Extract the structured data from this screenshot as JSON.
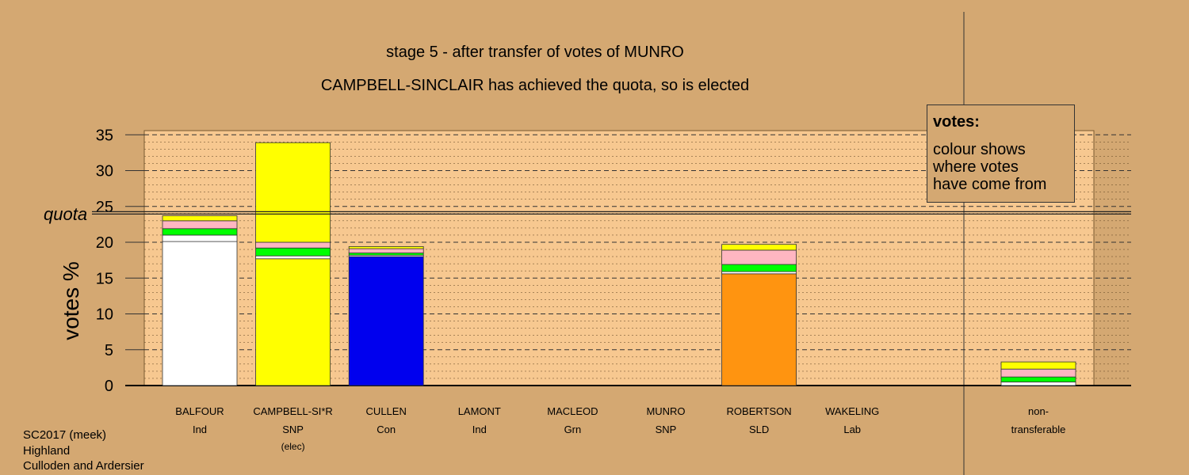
{
  "title": {
    "line1": "stage 5 - after transfer of votes of MUNRO",
    "line2": "CAMPBELL-SINCLAIR has achieved the quota, so is elected"
  },
  "legend": {
    "title": "votes:",
    "lines": [
      "colour shows",
      "where votes",
      "have come from"
    ]
  },
  "footer": {
    "lines": [
      "SC2017 (meek)",
      "Highland",
      "Culloden and Ardersier"
    ]
  },
  "colors": {
    "Ind": "#ffffff",
    "SNP": "#ffff00",
    "Con": "#0000ee",
    "SLD": "#ff9410",
    "Grn": "#00ff00",
    "Lab": "#ffb6c1",
    "background": "#d4a872",
    "plot_area": "#f7c890"
  },
  "chart_data": {
    "type": "bar",
    "stacked": true,
    "ylabel": "votes %",
    "ylim": [
      0,
      35
    ],
    "yticks": [
      0,
      5,
      10,
      15,
      20,
      25,
      30,
      35
    ],
    "grid": true,
    "quota": {
      "label": "quota",
      "value": 24.1
    },
    "legend_position": "top-right",
    "candidates": [
      {
        "name": "BALFOUR",
        "party": "Ind",
        "note": "",
        "segments": [
          {
            "from": "Ind",
            "value": 20.1
          },
          {
            "from": "Ind",
            "value": 0.9
          },
          {
            "from": "Grn",
            "value": 0.9
          },
          {
            "from": "Lab",
            "value": 1.1
          },
          {
            "from": "SNP",
            "value": 0.7
          }
        ]
      },
      {
        "name": "CAMPBELL-SI*R",
        "party": "SNP",
        "note": "(elec)",
        "segments": [
          {
            "from": "SNP",
            "value": 17.7
          },
          {
            "from": "Ind",
            "value": 0.4
          },
          {
            "from": "Grn",
            "value": 1.1
          },
          {
            "from": "Lab",
            "value": 0.8
          },
          {
            "from": "SNP",
            "value": 13.9
          }
        ]
      },
      {
        "name": "CULLEN",
        "party": "Con",
        "note": "",
        "segments": [
          {
            "from": "Con",
            "value": 18.0
          },
          {
            "from": "Ind",
            "value": 0.2
          },
          {
            "from": "Grn",
            "value": 0.3
          },
          {
            "from": "Lab",
            "value": 0.6
          },
          {
            "from": "SNP",
            "value": 0.3
          }
        ]
      },
      {
        "name": "LAMONT",
        "party": "Ind",
        "note": "",
        "segments": []
      },
      {
        "name": "MACLEOD",
        "party": "Grn",
        "note": "",
        "segments": []
      },
      {
        "name": "MUNRO",
        "party": "SNP",
        "note": "",
        "segments": []
      },
      {
        "name": "ROBERTSON",
        "party": "SLD",
        "note": "",
        "segments": [
          {
            "from": "SLD",
            "value": 15.6
          },
          {
            "from": "Ind",
            "value": 0.3
          },
          {
            "from": "Grn",
            "value": 1.0
          },
          {
            "from": "Lab",
            "value": 2.0
          },
          {
            "from": "SNP",
            "value": 0.8
          }
        ]
      },
      {
        "name": "WAKELING",
        "party": "Lab",
        "note": "",
        "segments": []
      }
    ],
    "nontransferable": {
      "label_line1": "non-",
      "label_line2": "transferable",
      "segments": [
        {
          "from": "Ind",
          "value": 0.5
        },
        {
          "from": "Grn",
          "value": 0.7
        },
        {
          "from": "Lab",
          "value": 1.1
        },
        {
          "from": "SNP",
          "value": 1.0
        }
      ]
    }
  }
}
